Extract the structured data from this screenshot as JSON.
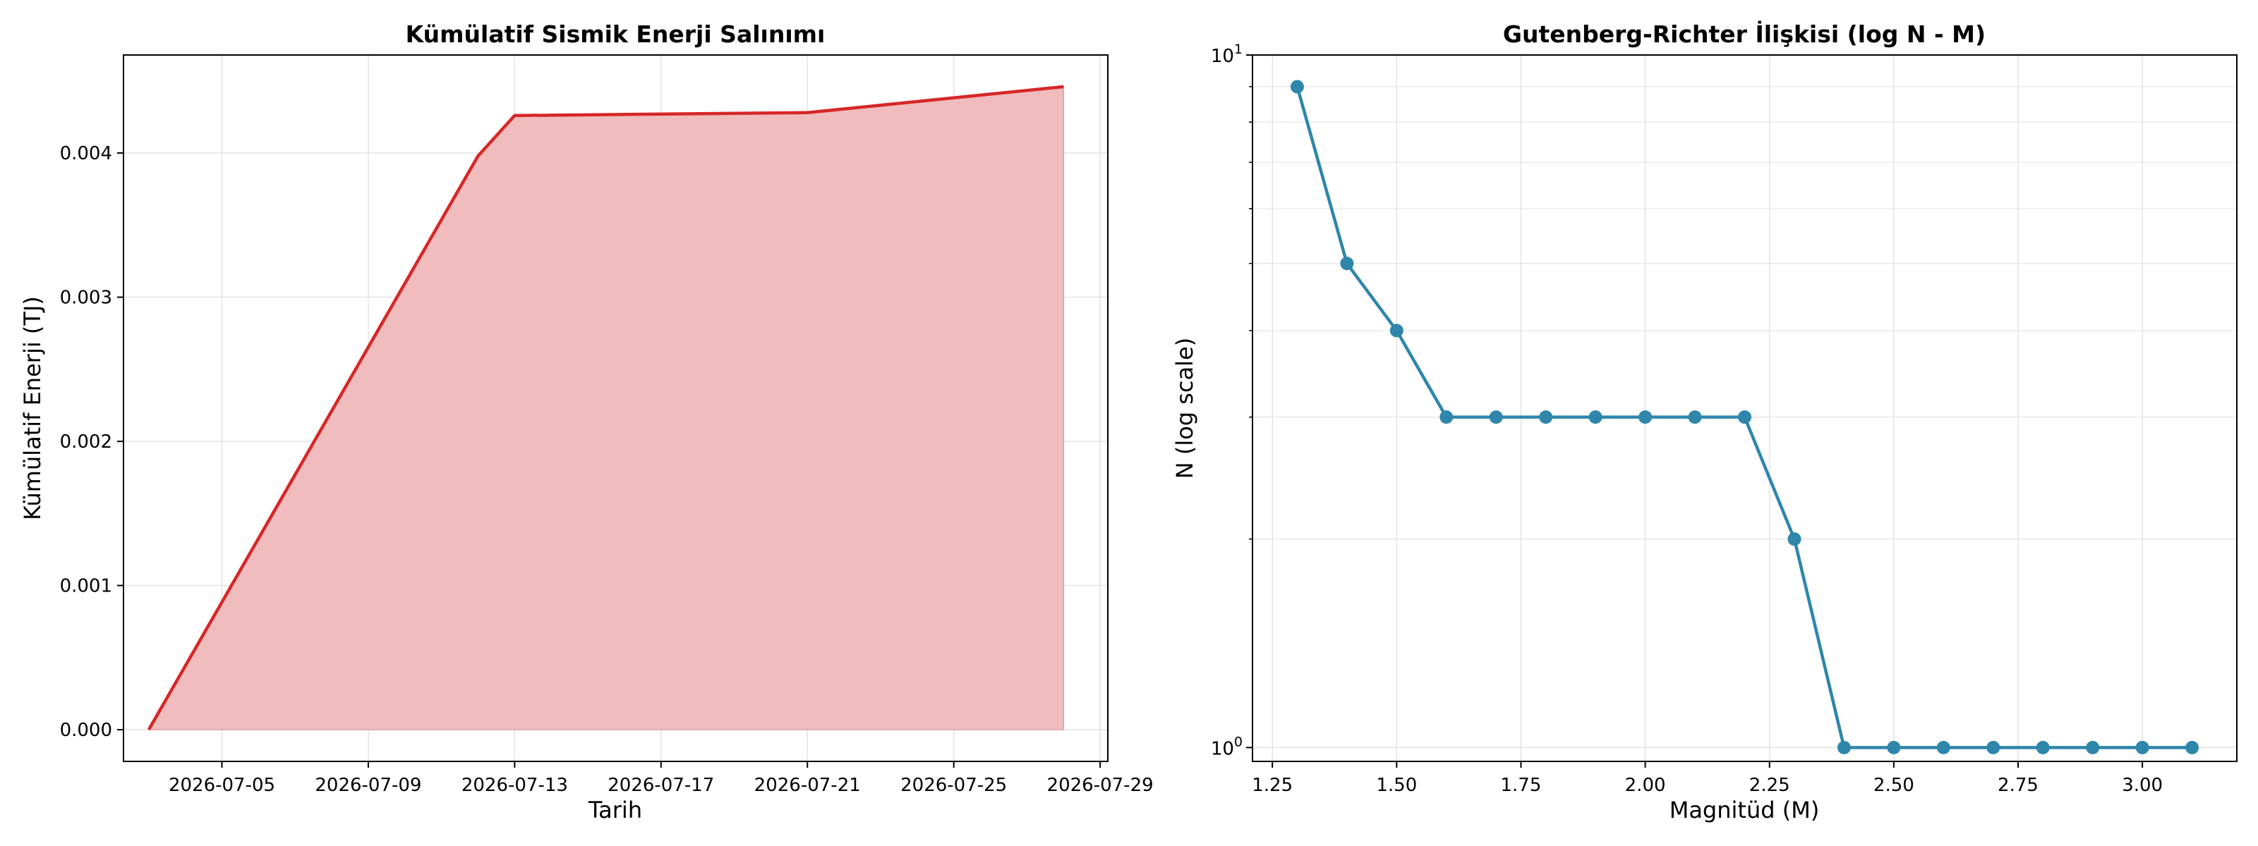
{
  "chart_data": [
    {
      "type": "area",
      "title": "Kümülatif Sismik Enerji Salınımı",
      "xlabel": "Tarih",
      "ylabel": "Kümülatif Enerji (TJ)",
      "x_ticks": [
        "2026-07-05",
        "2026-07-09",
        "2026-07-13",
        "2026-07-17",
        "2026-07-21",
        "2026-07-25",
        "2026-07-29"
      ],
      "y_ticks": [
        "0.000",
        "0.001",
        "0.002",
        "0.003",
        "0.004"
      ],
      "xlim": [
        "2026-07-03",
        "2026-07-29"
      ],
      "ylim": [
        -0.00022,
        0.00468
      ],
      "grid": true,
      "legend": "none",
      "colors": {
        "line": "#d62728",
        "fill": "#f0bcbd",
        "fill_edge": "#d9a5a6"
      },
      "points": [
        {
          "x": "2026-07-03",
          "y": 0.0
        },
        {
          "x": "2026-07-12",
          "y": 0.00398
        },
        {
          "x": "2026-07-13",
          "y": 0.00426
        },
        {
          "x": "2026-07-21",
          "y": 0.00428
        },
        {
          "x": "2026-07-28",
          "y": 0.00446
        }
      ]
    },
    {
      "type": "line",
      "title": "Gutenberg-Richter İlişkisi (log N - M)",
      "xlabel": "Magnitüd (M)",
      "ylabel": "N (log scale)",
      "x_ticks": [
        "1.25",
        "1.50",
        "1.75",
        "2.00",
        "2.25",
        "2.50",
        "2.75",
        "3.00"
      ],
      "y_ticks": [
        {
          "base": "10",
          "exp": "0",
          "value": 1
        },
        {
          "base": "10",
          "exp": "1",
          "value": 10
        }
      ],
      "yscale": "log",
      "xlim": [
        1.21,
        3.19
      ],
      "ylim": [
        0.955,
        10.0
      ],
      "grid": true,
      "legend": "none",
      "colors": {
        "line": "#2e86ab",
        "marker": "#2e86ab"
      },
      "x": [
        1.3,
        1.4,
        1.5,
        1.6,
        1.7,
        1.8,
        1.9,
        2.0,
        2.1,
        2.2,
        2.3,
        2.4,
        2.5,
        2.6,
        2.7,
        2.8,
        2.9,
        3.0,
        3.1
      ],
      "y": [
        9,
        5,
        4,
        3,
        3,
        3,
        3,
        3,
        3,
        3,
        2,
        1,
        1,
        1,
        1,
        1,
        1,
        1,
        1
      ]
    }
  ]
}
